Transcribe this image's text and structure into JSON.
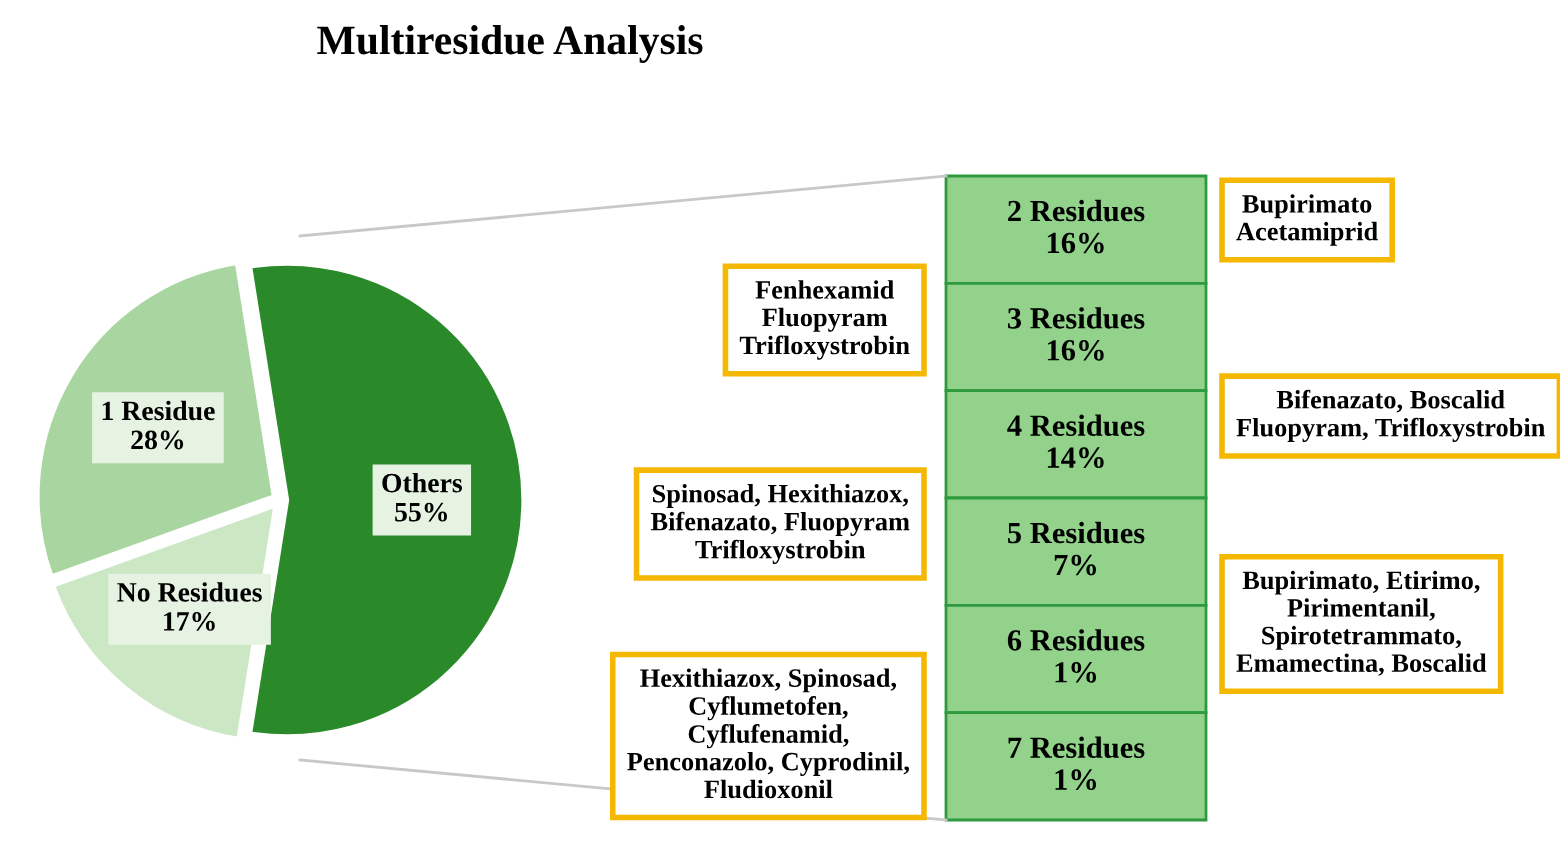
{
  "chart_data": [
    {
      "type": "pie",
      "title": "Multiresidue Analysis",
      "categories": [
        "Others",
        "1 Residue",
        "No Residues"
      ],
      "values": [
        55,
        28,
        17
      ],
      "value_labels": [
        "55%",
        "28%",
        "17%"
      ],
      "colors": [
        "#2a8a2a",
        "#a9d6a0",
        "#cbe7c4"
      ]
    },
    {
      "type": "other",
      "categories": [
        "2 Residues",
        "3 Residues",
        "4 Residues",
        "5 Residues",
        "6 Residues",
        "7 Residues"
      ],
      "values": [
        16,
        16,
        14,
        7,
        1,
        1
      ],
      "value_labels": [
        "16%",
        "16%",
        "14%",
        "7%",
        "1%",
        "1%"
      ],
      "color": "#92d28a",
      "annotations": [
        "Bupirimato\nAcetamiprid",
        "Fenhexamid\nFluopyram\nTrifloxystrobin",
        "Bifenazato, Boscalid\nFluopyram, Trifloxystrobin",
        "Spinosad, Hexithiazox,\nBifenazato, Fluopyram\nTrifloxystrobin",
        "Bupirimato, Etirimo,\nPirimentanil,\nSpirotetrammato,\nEmamectina, Boscalid",
        "Hexithiazox, Spinosad,\nCyflumetofen,\nCyflufenamid,\nPenconazolo, Cyprodinil,\nFludioxonil"
      ]
    }
  ]
}
